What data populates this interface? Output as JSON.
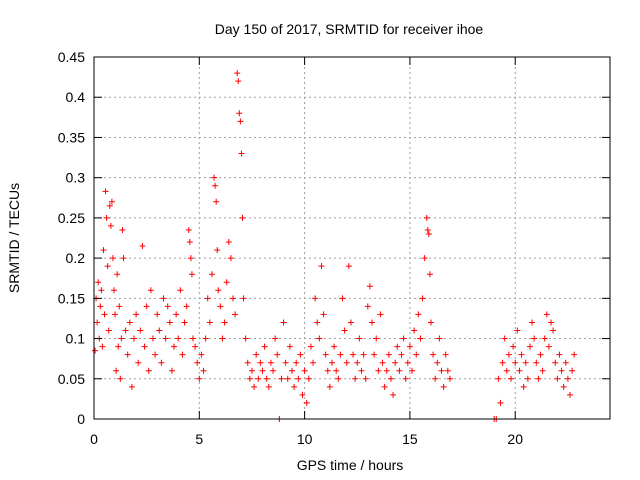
{
  "chart_data": {
    "type": "scatter",
    "title": "Day 150 of 2017, SRMTID for receiver ihoe",
    "xlabel": "GPS time / hours",
    "ylabel": "SRMTID / TECUs",
    "xlim": [
      0,
      24.5
    ],
    "ylim": [
      0,
      0.45
    ],
    "xticks": [
      0,
      5,
      10,
      15,
      20
    ],
    "xtick_labels": [
      "0",
      "5",
      "10",
      "15",
      "20"
    ],
    "yticks": [
      0,
      0.05,
      0.1,
      0.15,
      0.2,
      0.25,
      0.3,
      0.35,
      0.4,
      0.45
    ],
    "ytick_labels": [
      "0",
      "0.05",
      "0.1",
      "0.15",
      "0.2",
      "0.25",
      "0.3",
      "0.35",
      "0.4",
      "0.45"
    ],
    "grid": true,
    "marker": "plus",
    "color": "#ff0000",
    "series": [
      {
        "name": "SRMTID",
        "points": [
          [
            0.05,
            0.085
          ],
          [
            0.1,
            0.15
          ],
          [
            0.15,
            0.12
          ],
          [
            0.2,
            0.17
          ],
          [
            0.25,
            0.1
          ],
          [
            0.3,
            0.14
          ],
          [
            0.35,
            0.16
          ],
          [
            0.4,
            0.09
          ],
          [
            0.45,
            0.21
          ],
          [
            0.5,
            0.13
          ],
          [
            0.55,
            0.283
          ],
          [
            0.6,
            0.25
          ],
          [
            0.65,
            0.19
          ],
          [
            0.7,
            0.11
          ],
          [
            0.75,
            0.265
          ],
          [
            0.8,
            0.24
          ],
          [
            0.85,
            0.27
          ],
          [
            0.9,
            0.2
          ],
          [
            0.95,
            0.16
          ],
          [
            1.0,
            0.13
          ],
          [
            1.05,
            0.06
          ],
          [
            1.1,
            0.18
          ],
          [
            1.15,
            0.09
          ],
          [
            1.2,
            0.14
          ],
          [
            1.25,
            0.05
          ],
          [
            1.3,
            0.1
          ],
          [
            1.35,
            0.235
          ],
          [
            1.4,
            0.2
          ],
          [
            1.5,
            0.11
          ],
          [
            1.6,
            0.08
          ],
          [
            1.7,
            0.12
          ],
          [
            1.8,
            0.04
          ],
          [
            1.9,
            0.1
          ],
          [
            2.0,
            0.13
          ],
          [
            2.1,
            0.07
          ],
          [
            2.2,
            0.11
          ],
          [
            2.3,
            0.215
          ],
          [
            2.4,
            0.09
          ],
          [
            2.5,
            0.14
          ],
          [
            2.6,
            0.06
          ],
          [
            2.7,
            0.16
          ],
          [
            2.8,
            0.1
          ],
          [
            2.9,
            0.08
          ],
          [
            3.0,
            0.13
          ],
          [
            3.1,
            0.11
          ],
          [
            3.2,
            0.07
          ],
          [
            3.3,
            0.15
          ],
          [
            3.4,
            0.1
          ],
          [
            3.5,
            0.14
          ],
          [
            3.6,
            0.12
          ],
          [
            3.7,
            0.06
          ],
          [
            3.8,
            0.09
          ],
          [
            3.9,
            0.13
          ],
          [
            4.0,
            0.1
          ],
          [
            4.1,
            0.16
          ],
          [
            4.2,
            0.08
          ],
          [
            4.3,
            0.12
          ],
          [
            4.4,
            0.14
          ],
          [
            4.5,
            0.235
          ],
          [
            4.55,
            0.22
          ],
          [
            4.6,
            0.2
          ],
          [
            4.65,
            0.18
          ],
          [
            4.7,
            0.1
          ],
          [
            4.8,
            0.09
          ],
          [
            4.9,
            0.07
          ],
          [
            5.0,
            0.05
          ],
          [
            5.1,
            0.08
          ],
          [
            5.2,
            0.06
          ],
          [
            5.3,
            0.1
          ],
          [
            5.4,
            0.15
          ],
          [
            5.5,
            0.12
          ],
          [
            5.6,
            0.18
          ],
          [
            5.7,
            0.3
          ],
          [
            5.75,
            0.29
          ],
          [
            5.8,
            0.27
          ],
          [
            5.85,
            0.21
          ],
          [
            5.9,
            0.16
          ],
          [
            6.0,
            0.14
          ],
          [
            6.1,
            0.1
          ],
          [
            6.2,
            0.12
          ],
          [
            6.3,
            0.17
          ],
          [
            6.4,
            0.22
          ],
          [
            6.5,
            0.2
          ],
          [
            6.6,
            0.15
          ],
          [
            6.7,
            0.13
          ],
          [
            6.8,
            0.43
          ],
          [
            6.85,
            0.42
          ],
          [
            6.9,
            0.38
          ],
          [
            6.95,
            0.37
          ],
          [
            7.0,
            0.33
          ],
          [
            7.05,
            0.25
          ],
          [
            7.1,
            0.15
          ],
          [
            7.2,
            0.1
          ],
          [
            7.3,
            0.07
          ],
          [
            7.4,
            0.05
          ],
          [
            7.5,
            0.06
          ],
          [
            7.6,
            0.04
          ],
          [
            7.7,
            0.08
          ],
          [
            7.8,
            0.05
          ],
          [
            7.9,
            0.07
          ],
          [
            8.0,
            0.06
          ],
          [
            8.1,
            0.09
          ],
          [
            8.2,
            0.05
          ],
          [
            8.3,
            0.04
          ],
          [
            8.4,
            0.07
          ],
          [
            8.5,
            0.06
          ],
          [
            8.6,
            0.1
          ],
          [
            8.7,
            0.08
          ],
          [
            8.8,
            0.0
          ],
          [
            8.9,
            0.05
          ],
          [
            9.0,
            0.12
          ],
          [
            9.1,
            0.07
          ],
          [
            9.2,
            0.05
          ],
          [
            9.3,
            0.09
          ],
          [
            9.4,
            0.06
          ],
          [
            9.5,
            0.04
          ],
          [
            9.6,
            0.07
          ],
          [
            9.7,
            0.05
          ],
          [
            9.8,
            0.08
          ],
          [
            9.9,
            0.03
          ],
          [
            10.0,
            0.06
          ],
          [
            10.1,
            0.02
          ],
          [
            10.2,
            0.05
          ],
          [
            10.3,
            0.09
          ],
          [
            10.4,
            0.07
          ],
          [
            10.5,
            0.15
          ],
          [
            10.6,
            0.12
          ],
          [
            10.7,
            0.1
          ],
          [
            10.8,
            0.19
          ],
          [
            10.9,
            0.13
          ],
          [
            11.0,
            0.08
          ],
          [
            11.1,
            0.06
          ],
          [
            11.2,
            0.04
          ],
          [
            11.3,
            0.07
          ],
          [
            11.4,
            0.09
          ],
          [
            11.5,
            0.06
          ],
          [
            11.6,
            0.05
          ],
          [
            11.7,
            0.08
          ],
          [
            11.8,
            0.15
          ],
          [
            11.9,
            0.11
          ],
          [
            12.0,
            0.07
          ],
          [
            12.1,
            0.19
          ],
          [
            12.2,
            0.12
          ],
          [
            12.3,
            0.08
          ],
          [
            12.4,
            0.05
          ],
          [
            12.5,
            0.07
          ],
          [
            12.6,
            0.1
          ],
          [
            12.7,
            0.06
          ],
          [
            12.8,
            0.08
          ],
          [
            12.9,
            0.05
          ],
          [
            13.0,
            0.14
          ],
          [
            13.1,
            0.165
          ],
          [
            13.2,
            0.12
          ],
          [
            13.3,
            0.08
          ],
          [
            13.4,
            0.1
          ],
          [
            13.5,
            0.06
          ],
          [
            13.6,
            0.13
          ],
          [
            13.7,
            0.07
          ],
          [
            13.8,
            0.04
          ],
          [
            13.9,
            0.06
          ],
          [
            14.0,
            0.08
          ],
          [
            14.1,
            0.05
          ],
          [
            14.2,
            0.03
          ],
          [
            14.3,
            0.07
          ],
          [
            14.4,
            0.09
          ],
          [
            14.5,
            0.06
          ],
          [
            14.6,
            0.08
          ],
          [
            14.7,
            0.1
          ],
          [
            14.8,
            0.05
          ],
          [
            14.9,
            0.07
          ],
          [
            15.0,
            0.09
          ],
          [
            15.1,
            0.06
          ],
          [
            15.2,
            0.11
          ],
          [
            15.3,
            0.08
          ],
          [
            15.4,
            0.13
          ],
          [
            15.5,
            0.1
          ],
          [
            15.6,
            0.15
          ],
          [
            15.7,
            0.2
          ],
          [
            15.8,
            0.25
          ],
          [
            15.85,
            0.235
          ],
          [
            15.9,
            0.23
          ],
          [
            15.95,
            0.18
          ],
          [
            16.0,
            0.12
          ],
          [
            16.1,
            0.08
          ],
          [
            16.2,
            0.05
          ],
          [
            16.3,
            0.07
          ],
          [
            16.4,
            0.1
          ],
          [
            16.5,
            0.06
          ],
          [
            16.6,
            0.04
          ],
          [
            16.7,
            0.08
          ],
          [
            16.8,
            0.06
          ],
          [
            16.9,
            0.05
          ],
          [
            19.0,
            0.0
          ],
          [
            19.1,
            0.0
          ],
          [
            19.2,
            0.05
          ],
          [
            19.3,
            0.02
          ],
          [
            19.4,
            0.07
          ],
          [
            19.5,
            0.1
          ],
          [
            19.6,
            0.06
          ],
          [
            19.7,
            0.08
          ],
          [
            19.8,
            0.05
          ],
          [
            19.9,
            0.09
          ],
          [
            20.0,
            0.07
          ],
          [
            20.1,
            0.11
          ],
          [
            20.2,
            0.06
          ],
          [
            20.3,
            0.08
          ],
          [
            20.4,
            0.04
          ],
          [
            20.5,
            0.07
          ],
          [
            20.6,
            0.05
          ],
          [
            20.7,
            0.09
          ],
          [
            20.8,
            0.12
          ],
          [
            20.9,
            0.1
          ],
          [
            21.0,
            0.07
          ],
          [
            21.1,
            0.05
          ],
          [
            21.2,
            0.08
          ],
          [
            21.3,
            0.06
          ],
          [
            21.4,
            0.1
          ],
          [
            21.5,
            0.13
          ],
          [
            21.6,
            0.09
          ],
          [
            21.7,
            0.12
          ],
          [
            21.8,
            0.11
          ],
          [
            21.9,
            0.07
          ],
          [
            22.0,
            0.05
          ],
          [
            22.1,
            0.08
          ],
          [
            22.2,
            0.06
          ],
          [
            22.3,
            0.04
          ],
          [
            22.4,
            0.07
          ],
          [
            22.5,
            0.05
          ],
          [
            22.6,
            0.03
          ],
          [
            22.7,
            0.06
          ],
          [
            22.8,
            0.08
          ]
        ]
      }
    ]
  }
}
